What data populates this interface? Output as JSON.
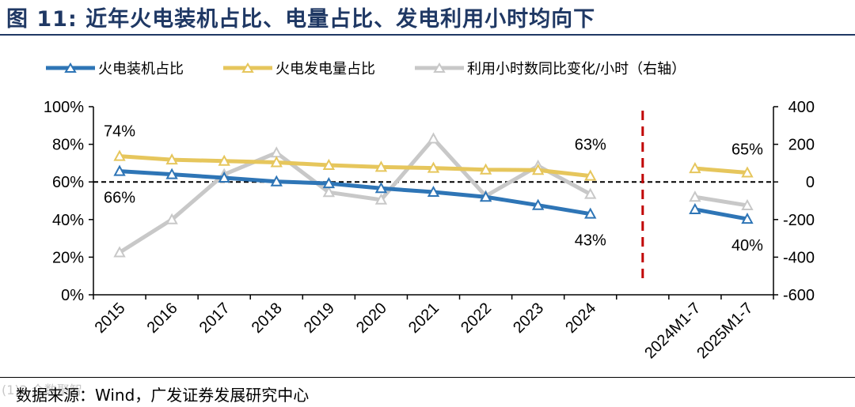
{
  "header": {
    "title": "图  11:  近年火电装机占比、电量占比、发电利用小时均向下"
  },
  "footer": {
    "source": "数据来源：Wind，广发证券发展研究中心",
    "watermark": "(1)2 众数聚智"
  },
  "colors": {
    "blue": "#2e75b6",
    "yellow": "#e6c65c",
    "gray": "#c8c8c8",
    "divider": "#c00000",
    "title": "#1f3864"
  },
  "chart_data": {
    "type": "line",
    "categories": [
      "2015",
      "2016",
      "2017",
      "2018",
      "2019",
      "2020",
      "2021",
      "2022",
      "2023",
      "2024",
      "",
      "2024M1-7",
      "2025M1-7"
    ],
    "left_axis": {
      "min": 0,
      "max": 100,
      "ticks": [
        "0%",
        "20%",
        "40%",
        "60%",
        "80%",
        "100%"
      ]
    },
    "right_axis": {
      "min": -600,
      "max": 400,
      "ticks": [
        "-600",
        "-400",
        "-200",
        "0",
        "200",
        "400"
      ]
    },
    "reference_line": {
      "axis": "left",
      "value": 60,
      "style": "dashed"
    },
    "divider": {
      "after_category": "2024",
      "style": "dashed"
    },
    "series": [
      {
        "name": "火电装机占比",
        "axis": "left",
        "color": "#2e75b6",
        "values": [
          65.7,
          64.0,
          62.2,
          60.2,
          59.2,
          56.6,
          54.6,
          52.0,
          47.6,
          43.0,
          null,
          45.4,
          40.3
        ]
      },
      {
        "name": "火电发电量占比",
        "axis": "left",
        "color": "#e6c65c",
        "values": [
          73.7,
          71.8,
          71.1,
          70.4,
          68.9,
          67.9,
          67.4,
          66.5,
          66.3,
          63.2,
          null,
          67.2,
          64.9
        ]
      },
      {
        "name": "利用小时数同比变化/小时（右轴）",
        "axis": "right",
        "color": "#c8c8c8",
        "values": [
          -375,
          -200,
          40,
          155,
          -55,
          -95,
          230,
          -75,
          85,
          -65,
          null,
          -80,
          -125
        ]
      }
    ],
    "annotations": [
      {
        "text": "74%"
      },
      {
        "text": "66%"
      },
      {
        "text": "63%"
      },
      {
        "text": "43%"
      },
      {
        "text": "65%"
      },
      {
        "text": "40%"
      }
    ]
  }
}
